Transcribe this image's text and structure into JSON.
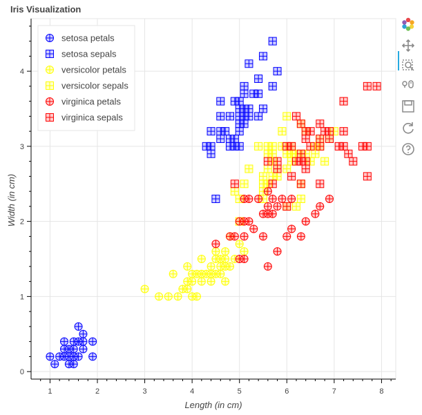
{
  "chart_data": {
    "type": "scatter",
    "title": "Iris Visualization",
    "xlabel": "Length (in cm)",
    "ylabel": "Width (in cm)",
    "xlim": [
      0.6,
      8.3
    ],
    "ylim": [
      -0.1,
      4.7
    ],
    "xticks": [
      1,
      2,
      3,
      4,
      5,
      6,
      7,
      8
    ],
    "yticks": [
      0,
      1,
      2,
      3,
      4
    ],
    "grid": true,
    "legend_position": "top-left",
    "series": [
      {
        "name": "setosa petals",
        "marker": "circle_cross",
        "color": "#0000ff",
        "points": [
          [
            1.0,
            0.2
          ],
          [
            1.1,
            0.1
          ],
          [
            1.2,
            0.2
          ],
          [
            1.3,
            0.2
          ],
          [
            1.3,
            0.3
          ],
          [
            1.3,
            0.4
          ],
          [
            1.4,
            0.1
          ],
          [
            1.4,
            0.2
          ],
          [
            1.4,
            0.3
          ],
          [
            1.5,
            0.1
          ],
          [
            1.5,
            0.2
          ],
          [
            1.5,
            0.3
          ],
          [
            1.5,
            0.4
          ],
          [
            1.6,
            0.2
          ],
          [
            1.6,
            0.4
          ],
          [
            1.6,
            0.6
          ],
          [
            1.7,
            0.3
          ],
          [
            1.7,
            0.4
          ],
          [
            1.7,
            0.5
          ],
          [
            1.9,
            0.2
          ],
          [
            1.9,
            0.4
          ]
        ]
      },
      {
        "name": "setosa sepals",
        "marker": "square_cross",
        "color": "#0000ff",
        "points": [
          [
            4.3,
            3.0
          ],
          [
            4.4,
            2.9
          ],
          [
            4.4,
            3.0
          ],
          [
            4.4,
            3.2
          ],
          [
            4.5,
            2.3
          ],
          [
            4.6,
            3.1
          ],
          [
            4.6,
            3.2
          ],
          [
            4.6,
            3.4
          ],
          [
            4.6,
            3.6
          ],
          [
            4.7,
            3.2
          ],
          [
            4.8,
            3.0
          ],
          [
            4.8,
            3.1
          ],
          [
            4.8,
            3.4
          ],
          [
            4.9,
            3.0
          ],
          [
            4.9,
            3.1
          ],
          [
            4.9,
            3.6
          ],
          [
            5.0,
            3.0
          ],
          [
            5.0,
            3.2
          ],
          [
            5.0,
            3.3
          ],
          [
            5.0,
            3.4
          ],
          [
            5.0,
            3.5
          ],
          [
            5.0,
            3.6
          ],
          [
            5.1,
            3.3
          ],
          [
            5.1,
            3.4
          ],
          [
            5.1,
            3.5
          ],
          [
            5.1,
            3.7
          ],
          [
            5.1,
            3.8
          ],
          [
            5.2,
            3.4
          ],
          [
            5.2,
            3.5
          ],
          [
            5.2,
            4.1
          ],
          [
            5.3,
            3.7
          ],
          [
            5.4,
            3.4
          ],
          [
            5.4,
            3.7
          ],
          [
            5.4,
            3.9
          ],
          [
            5.5,
            3.5
          ],
          [
            5.5,
            4.2
          ],
          [
            5.7,
            3.8
          ],
          [
            5.7,
            4.4
          ],
          [
            5.8,
            4.0
          ]
        ]
      },
      {
        "name": "versicolor petals",
        "marker": "circle_cross",
        "color": "#ffff00",
        "points": [
          [
            3.0,
            1.1
          ],
          [
            3.3,
            1.0
          ],
          [
            3.5,
            1.0
          ],
          [
            3.6,
            1.3
          ],
          [
            3.7,
            1.0
          ],
          [
            3.8,
            1.1
          ],
          [
            3.9,
            1.1
          ],
          [
            3.9,
            1.2
          ],
          [
            3.9,
            1.4
          ],
          [
            4.0,
            1.0
          ],
          [
            4.0,
            1.2
          ],
          [
            4.0,
            1.3
          ],
          [
            4.1,
            1.0
          ],
          [
            4.1,
            1.3
          ],
          [
            4.2,
            1.2
          ],
          [
            4.2,
            1.3
          ],
          [
            4.2,
            1.5
          ],
          [
            4.3,
            1.3
          ],
          [
            4.4,
            1.2
          ],
          [
            4.4,
            1.3
          ],
          [
            4.4,
            1.4
          ],
          [
            4.5,
            1.3
          ],
          [
            4.5,
            1.5
          ],
          [
            4.5,
            1.6
          ],
          [
            4.6,
            1.3
          ],
          [
            4.6,
            1.4
          ],
          [
            4.6,
            1.5
          ],
          [
            4.7,
            1.2
          ],
          [
            4.7,
            1.4
          ],
          [
            4.7,
            1.5
          ],
          [
            4.7,
            1.6
          ],
          [
            4.8,
            1.4
          ],
          [
            4.8,
            1.8
          ],
          [
            4.9,
            1.5
          ],
          [
            5.0,
            1.7
          ],
          [
            5.1,
            1.6
          ]
        ]
      },
      {
        "name": "versicolor sepals",
        "marker": "square_cross",
        "color": "#ffff00",
        "points": [
          [
            4.9,
            2.4
          ],
          [
            5.0,
            2.0
          ],
          [
            5.0,
            2.3
          ],
          [
            5.1,
            2.5
          ],
          [
            5.2,
            2.7
          ],
          [
            5.4,
            3.0
          ],
          [
            5.5,
            2.3
          ],
          [
            5.5,
            2.4
          ],
          [
            5.5,
            2.5
          ],
          [
            5.5,
            2.6
          ],
          [
            5.6,
            2.5
          ],
          [
            5.6,
            2.7
          ],
          [
            5.6,
            2.9
          ],
          [
            5.6,
            3.0
          ],
          [
            5.7,
            2.6
          ],
          [
            5.7,
            2.8
          ],
          [
            5.7,
            2.9
          ],
          [
            5.7,
            3.0
          ],
          [
            5.8,
            2.6
          ],
          [
            5.8,
            2.7
          ],
          [
            5.9,
            3.0
          ],
          [
            5.9,
            3.2
          ],
          [
            6.0,
            2.2
          ],
          [
            6.0,
            2.7
          ],
          [
            6.0,
            2.9
          ],
          [
            6.0,
            3.4
          ],
          [
            6.1,
            2.8
          ],
          [
            6.1,
            2.9
          ],
          [
            6.1,
            3.0
          ],
          [
            6.2,
            2.2
          ],
          [
            6.2,
            2.9
          ],
          [
            6.3,
            2.3
          ],
          [
            6.3,
            2.5
          ],
          [
            6.3,
            3.3
          ],
          [
            6.4,
            2.9
          ],
          [
            6.4,
            3.2
          ],
          [
            6.5,
            2.8
          ],
          [
            6.6,
            2.9
          ],
          [
            6.6,
            3.0
          ],
          [
            6.7,
            3.0
          ],
          [
            6.7,
            3.1
          ],
          [
            6.8,
            2.8
          ],
          [
            6.9,
            3.1
          ],
          [
            7.0,
            3.2
          ]
        ]
      },
      {
        "name": "virginica petals",
        "marker": "circle_cross",
        "color": "#ff0000",
        "points": [
          [
            4.5,
            1.7
          ],
          [
            4.8,
            1.8
          ],
          [
            4.9,
            1.8
          ],
          [
            5.0,
            1.5
          ],
          [
            5.0,
            2.0
          ],
          [
            5.1,
            1.5
          ],
          [
            5.1,
            1.8
          ],
          [
            5.1,
            2.0
          ],
          [
            5.1,
            2.3
          ],
          [
            5.2,
            2.0
          ],
          [
            5.2,
            2.3
          ],
          [
            5.3,
            1.9
          ],
          [
            5.4,
            2.3
          ],
          [
            5.5,
            2.1
          ],
          [
            5.5,
            1.8
          ],
          [
            5.6,
            1.4
          ],
          [
            5.6,
            2.1
          ],
          [
            5.6,
            2.2
          ],
          [
            5.6,
            2.4
          ],
          [
            5.7,
            2.1
          ],
          [
            5.7,
            2.3
          ],
          [
            5.8,
            1.6
          ],
          [
            5.8,
            2.2
          ],
          [
            5.9,
            2.3
          ],
          [
            6.0,
            1.8
          ],
          [
            6.1,
            1.9
          ],
          [
            6.1,
            2.3
          ],
          [
            6.3,
            1.8
          ],
          [
            6.4,
            2.0
          ],
          [
            6.6,
            2.1
          ],
          [
            6.7,
            2.2
          ],
          [
            6.9,
            2.3
          ]
        ]
      },
      {
        "name": "virginica sepals",
        "marker": "square_cross",
        "color": "#ff0000",
        "points": [
          [
            4.9,
            2.5
          ],
          [
            5.6,
            2.8
          ],
          [
            5.7,
            2.5
          ],
          [
            5.8,
            2.7
          ],
          [
            5.8,
            2.8
          ],
          [
            6.0,
            2.2
          ],
          [
            6.0,
            3.0
          ],
          [
            6.1,
            2.6
          ],
          [
            6.1,
            3.0
          ],
          [
            6.2,
            2.8
          ],
          [
            6.2,
            3.4
          ],
          [
            6.3,
            2.5
          ],
          [
            6.3,
            2.8
          ],
          [
            6.3,
            2.9
          ],
          [
            6.3,
            3.3
          ],
          [
            6.4,
            2.7
          ],
          [
            6.4,
            2.8
          ],
          [
            6.4,
            3.1
          ],
          [
            6.4,
            3.2
          ],
          [
            6.5,
            3.0
          ],
          [
            6.5,
            3.2
          ],
          [
            6.7,
            2.5
          ],
          [
            6.7,
            3.0
          ],
          [
            6.7,
            3.1
          ],
          [
            6.7,
            3.3
          ],
          [
            6.8,
            3.2
          ],
          [
            6.9,
            3.1
          ],
          [
            6.9,
            3.2
          ],
          [
            7.1,
            3.0
          ],
          [
            7.2,
            3.0
          ],
          [
            7.2,
            3.2
          ],
          [
            7.2,
            3.6
          ],
          [
            7.3,
            2.9
          ],
          [
            7.4,
            2.8
          ],
          [
            7.6,
            3.0
          ],
          [
            7.7,
            2.6
          ],
          [
            7.7,
            3.0
          ],
          [
            7.7,
            3.8
          ],
          [
            7.9,
            3.8
          ]
        ]
      }
    ]
  },
  "toolbar": {
    "tools": [
      {
        "name": "bokeh-logo-icon",
        "interactable": false
      },
      {
        "name": "pan-icon",
        "interactable": true
      },
      {
        "name": "box-zoom-icon",
        "interactable": true
      },
      {
        "name": "wheel-zoom-icon",
        "interactable": true
      },
      {
        "name": "save-icon",
        "interactable": true
      },
      {
        "name": "reset-icon",
        "interactable": true
      },
      {
        "name": "help-icon",
        "interactable": true
      }
    ]
  }
}
